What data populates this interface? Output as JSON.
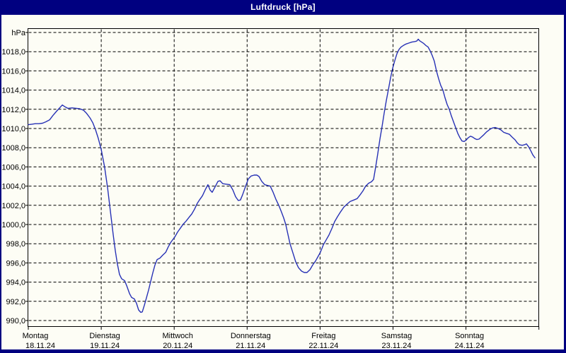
{
  "window": {
    "title": "Luftdruck [hPa]"
  },
  "colors": {
    "titlebar_bg": "#000080",
    "title_text": "#FFFFFF",
    "window_bg": "#FDFDF5",
    "frame_border": "#000080",
    "plot_border": "#000000",
    "gridline": "#000000",
    "axis_text": "#000000",
    "line": "#2731B5"
  },
  "chart_data": {
    "type": "line",
    "title": "Luftdruck [hPa]",
    "grid": true,
    "legend": false,
    "y_axis": {
      "unit_label": "hPa",
      "top_gridline_value": 1020,
      "gridline_step": 2,
      "ylim": [
        989.3,
        1020.4
      ],
      "ticks": [
        {
          "value": 1018,
          "label": "1018,0"
        },
        {
          "value": 1016,
          "label": "1016,0"
        },
        {
          "value": 1014,
          "label": "1014,0"
        },
        {
          "value": 1012,
          "label": "1012,0"
        },
        {
          "value": 1010,
          "label": "1010,0"
        },
        {
          "value": 1008,
          "label": "1008,0"
        },
        {
          "value": 1006,
          "label": "1006,0"
        },
        {
          "value": 1004,
          "label": "1004,0"
        },
        {
          "value": 1002,
          "label": "1002,0"
        },
        {
          "value": 1000,
          "label": "1000,0"
        },
        {
          "value": 998,
          "label": "998,0"
        },
        {
          "value": 996,
          "label": "996,0"
        },
        {
          "value": 994,
          "label": "994,0"
        },
        {
          "value": 992,
          "label": "992,0"
        },
        {
          "value": 990,
          "label": "990,0"
        }
      ]
    },
    "x_axis": {
      "range_hours": [
        0,
        168
      ],
      "hours_per_day": 24,
      "days": [
        {
          "name": "Montag",
          "date": "18.11.24"
        },
        {
          "name": "Dienstag",
          "date": "19.11.24"
        },
        {
          "name": "Mittwoch",
          "date": "20.11.24"
        },
        {
          "name": "Donnerstag",
          "date": "21.11.24"
        },
        {
          "name": "Freitag",
          "date": "22.11.24"
        },
        {
          "name": "Samstag",
          "date": "23.11.24"
        },
        {
          "name": "Sonntag",
          "date": "24.11.24"
        }
      ]
    },
    "series": [
      {
        "name": "Luftdruck",
        "unit": "hPa",
        "color": "#2731B5",
        "points_hours_hpa": [
          [
            0,
            1010.4
          ],
          [
            1.2,
            1010.45
          ],
          [
            2.3,
            1010.5
          ],
          [
            3.5,
            1010.5
          ],
          [
            4.7,
            1010.55
          ],
          [
            5.8,
            1010.7
          ],
          [
            7,
            1010.9
          ],
          [
            8.1,
            1011.35
          ],
          [
            9.3,
            1011.8
          ],
          [
            10.2,
            1012.1
          ],
          [
            11.2,
            1012.45
          ],
          [
            12.1,
            1012.25
          ],
          [
            13,
            1012.1
          ],
          [
            14.4,
            1012.15
          ],
          [
            15.8,
            1012.1
          ],
          [
            17,
            1012.05
          ],
          [
            18.2,
            1011.9
          ],
          [
            19.1,
            1011.6
          ],
          [
            20.3,
            1011.1
          ],
          [
            21.2,
            1010.6
          ],
          [
            22.1,
            1009.9
          ],
          [
            23,
            1009.0
          ],
          [
            24,
            1007.8
          ],
          [
            25.1,
            1006.0
          ],
          [
            26.1,
            1003.8
          ],
          [
            27,
            1001.4
          ],
          [
            27.9,
            999.0
          ],
          [
            28.6,
            997.3
          ],
          [
            29.3,
            995.9
          ],
          [
            30,
            994.8
          ],
          [
            30.7,
            994.35
          ],
          [
            31.7,
            994.15
          ],
          [
            32.4,
            993.6
          ],
          [
            33.3,
            992.8
          ],
          [
            34,
            992.4
          ],
          [
            34.9,
            992.25
          ],
          [
            35.6,
            991.8
          ],
          [
            36.3,
            991.1
          ],
          [
            37,
            990.85
          ],
          [
            37.5,
            990.9
          ],
          [
            38.2,
            991.6
          ],
          [
            38.9,
            992.4
          ],
          [
            39.6,
            993.2
          ],
          [
            40.3,
            994.1
          ],
          [
            41,
            995.0
          ],
          [
            41.7,
            995.8
          ],
          [
            42.4,
            996.35
          ],
          [
            43.3,
            996.5
          ],
          [
            44.2,
            996.8
          ],
          [
            45.2,
            997.1
          ],
          [
            46.1,
            997.7
          ],
          [
            47,
            998.2
          ],
          [
            48.2,
            998.7
          ],
          [
            49.1,
            999.2
          ],
          [
            50.1,
            999.65
          ],
          [
            51,
            1000.05
          ],
          [
            51.9,
            1000.35
          ],
          [
            52.9,
            1000.75
          ],
          [
            53.8,
            1001.1
          ],
          [
            54.7,
            1001.6
          ],
          [
            55.6,
            1002.2
          ],
          [
            56.3,
            1002.55
          ],
          [
            57.3,
            1003.0
          ],
          [
            58.2,
            1003.6
          ],
          [
            59.1,
            1004.15
          ],
          [
            59.8,
            1003.6
          ],
          [
            60.5,
            1003.35
          ],
          [
            61.5,
            1003.95
          ],
          [
            62.4,
            1004.5
          ],
          [
            63.1,
            1004.55
          ],
          [
            64,
            1004.25
          ],
          [
            65.2,
            1004.2
          ],
          [
            66.3,
            1004.15
          ],
          [
            67.3,
            1003.6
          ],
          [
            68.2,
            1002.9
          ],
          [
            69.1,
            1002.5
          ],
          [
            69.8,
            1002.55
          ],
          [
            70.5,
            1003.1
          ],
          [
            71.5,
            1004.0
          ],
          [
            72.4,
            1004.75
          ],
          [
            73.3,
            1005.05
          ],
          [
            74.3,
            1005.15
          ],
          [
            75.2,
            1005.15
          ],
          [
            75.9,
            1005.0
          ],
          [
            76.8,
            1004.5
          ],
          [
            77.8,
            1004.15
          ],
          [
            78.9,
            1004.05
          ],
          [
            79.6,
            1004.0
          ],
          [
            80.5,
            1003.4
          ],
          [
            81.5,
            1002.6
          ],
          [
            82.4,
            1002.0
          ],
          [
            83.3,
            1001.3
          ],
          [
            84,
            1000.7
          ],
          [
            84.7,
            1000.0
          ],
          [
            85.4,
            999.0
          ],
          [
            86.1,
            998.0
          ],
          [
            87.1,
            997.0
          ],
          [
            88,
            996.1
          ],
          [
            88.9,
            995.5
          ],
          [
            89.9,
            995.15
          ],
          [
            90.8,
            995.0
          ],
          [
            91.7,
            995.0
          ],
          [
            92.7,
            995.3
          ],
          [
            93.6,
            995.8
          ],
          [
            94.5,
            996.2
          ],
          [
            95.4,
            996.7
          ],
          [
            96.1,
            997.1
          ],
          [
            97.1,
            997.9
          ],
          [
            98,
            998.4
          ],
          [
            98.9,
            998.9
          ],
          [
            99.9,
            999.6
          ],
          [
            100.8,
            1000.3
          ],
          [
            101.7,
            1000.8
          ],
          [
            102.7,
            1001.3
          ],
          [
            103.8,
            1001.8
          ],
          [
            104.8,
            1002.1
          ],
          [
            105.9,
            1002.4
          ],
          [
            107.1,
            1002.55
          ],
          [
            108.2,
            1002.7
          ],
          [
            109.2,
            1003.1
          ],
          [
            110.1,
            1003.5
          ],
          [
            111,
            1004.0
          ],
          [
            112,
            1004.3
          ],
          [
            112.9,
            1004.45
          ],
          [
            113.6,
            1004.7
          ],
          [
            114.3,
            1006.0
          ],
          [
            115,
            1007.4
          ],
          [
            115.7,
            1008.9
          ],
          [
            116.4,
            1010.2
          ],
          [
            117.1,
            1011.6
          ],
          [
            117.8,
            1012.9
          ],
          [
            118.5,
            1014.1
          ],
          [
            119.2,
            1015.3
          ],
          [
            119.9,
            1016.3
          ],
          [
            120.6,
            1017.1
          ],
          [
            121.3,
            1017.8
          ],
          [
            122,
            1018.25
          ],
          [
            122.7,
            1018.5
          ],
          [
            123.4,
            1018.65
          ],
          [
            124.3,
            1018.8
          ],
          [
            125.2,
            1018.9
          ],
          [
            126.2,
            1019.0
          ],
          [
            127.1,
            1019.05
          ],
          [
            127.8,
            1019.1
          ],
          [
            128.3,
            1019.3
          ],
          [
            128.7,
            1019.15
          ],
          [
            129.4,
            1019.0
          ],
          [
            130.1,
            1018.85
          ],
          [
            130.8,
            1018.65
          ],
          [
            131.5,
            1018.5
          ],
          [
            132.2,
            1018.1
          ],
          [
            132.9,
            1017.6
          ],
          [
            133.6,
            1017.0
          ],
          [
            134.3,
            1016.0
          ],
          [
            135,
            1015.2
          ],
          [
            135.7,
            1014.5
          ],
          [
            136.4,
            1014.0
          ],
          [
            137.1,
            1013.2
          ],
          [
            137.8,
            1012.5
          ],
          [
            138.5,
            1012.0
          ],
          [
            139.2,
            1011.3
          ],
          [
            139.9,
            1010.7
          ],
          [
            140.6,
            1010.1
          ],
          [
            141.3,
            1009.5
          ],
          [
            142,
            1009.05
          ],
          [
            142.7,
            1008.7
          ],
          [
            143.4,
            1008.65
          ],
          [
            144.1,
            1008.8
          ],
          [
            144.8,
            1009.05
          ],
          [
            145.5,
            1009.2
          ],
          [
            146.2,
            1009.1
          ],
          [
            146.9,
            1008.95
          ],
          [
            147.6,
            1008.85
          ],
          [
            148.3,
            1008.9
          ],
          [
            149,
            1009.1
          ],
          [
            149.9,
            1009.35
          ],
          [
            150.8,
            1009.65
          ],
          [
            151.8,
            1009.9
          ],
          [
            152.7,
            1010.05
          ],
          [
            153.6,
            1010.1
          ],
          [
            154.6,
            1010.0
          ],
          [
            155.5,
            1009.85
          ],
          [
            156.4,
            1009.6
          ],
          [
            157.3,
            1009.5
          ],
          [
            158.3,
            1009.4
          ],
          [
            159.2,
            1009.1
          ],
          [
            160.2,
            1008.8
          ],
          [
            160.9,
            1008.5
          ],
          [
            161.6,
            1008.3
          ],
          [
            162.5,
            1008.25
          ],
          [
            163.2,
            1008.3
          ],
          [
            163.9,
            1008.4
          ],
          [
            164.6,
            1008.1
          ],
          [
            165.3,
            1007.7
          ],
          [
            166,
            1007.25
          ],
          [
            166.7,
            1006.95
          ]
        ]
      }
    ]
  }
}
